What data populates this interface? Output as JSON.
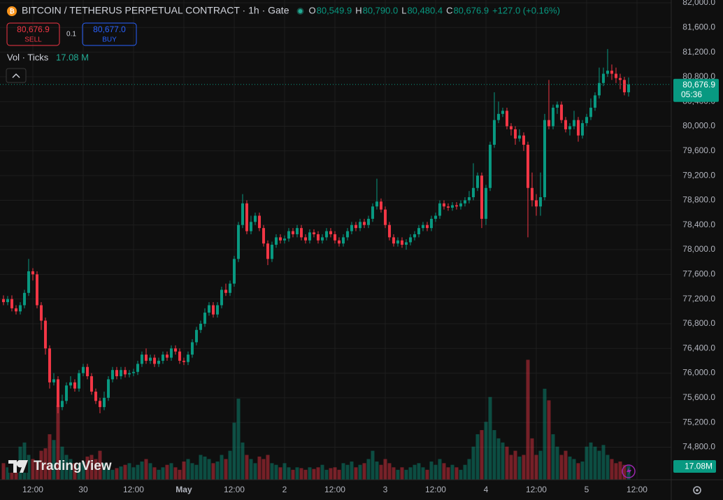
{
  "chart_data": {
    "type": "candlestick",
    "open": [
      77200,
      77150,
      77200,
      77050,
      77000,
      77100,
      77300,
      77650,
      77600,
      77100,
      76850,
      76400,
      75850,
      75900,
      75450,
      75550,
      75800,
      75850,
      75750,
      76000,
      76100,
      75950,
      75700,
      75550,
      75450,
      75600,
      75900,
      76050,
      75950,
      76050,
      75980,
      76000,
      76020,
      76150,
      76300,
      76200,
      76250,
      76150,
      76200,
      76300,
      76250,
      76400,
      76350,
      76200,
      76180,
      76300,
      76500,
      76700,
      76800,
      76980,
      77100,
      76950,
      77100,
      77350,
      77300,
      77450,
      77850,
      78400,
      78750,
      78300,
      78450,
      78550,
      78350,
      78100,
      77850,
      78080,
      78200,
      78150,
      78180,
      78300,
      78250,
      78350,
      78200,
      78150,
      78280,
      78250,
      78150,
      78200,
      78300,
      78250,
      78150,
      78100,
      78200,
      78300,
      78400,
      78350,
      78450,
      78400,
      78500,
      78700,
      78780,
      78650,
      78400,
      78200,
      78100,
      78150,
      78080,
      78120,
      78200,
      78250,
      78350,
      78400,
      78350,
      78500,
      78550,
      78750,
      78700,
      78680,
      78720,
      78700,
      78750,
      78800,
      78850,
      79000,
      79200,
      78500,
      79000,
      79700,
      80100,
      80200,
      80250,
      80000,
      79950,
      79800,
      79850,
      79700,
      79000,
      78800,
      78700,
      78850,
      80100,
      80000,
      80300,
      80350,
      80100,
      79950,
      80000,
      80100,
      79850,
      80050,
      80150,
      80300,
      80500,
      80700,
      80850,
      80900,
      80850,
      80780,
      80750,
      80549.9
    ],
    "high": [
      77260,
      77250,
      77260,
      77100,
      77150,
      77350,
      77850,
      77700,
      77650,
      77150,
      76900,
      76450,
      76000,
      75950,
      75650,
      75850,
      75950,
      75900,
      76050,
      76150,
      76150,
      76000,
      75750,
      75600,
      75700,
      75950,
      76100,
      76100,
      76100,
      76100,
      76050,
      76070,
      76200,
      76350,
      76400,
      76300,
      76300,
      76250,
      76350,
      76350,
      76450,
      76450,
      76400,
      76250,
      76350,
      76550,
      76750,
      76850,
      77050,
      77150,
      77150,
      77150,
      77400,
      77450,
      77500,
      77900,
      78450,
      78900,
      78800,
      78550,
      78600,
      78600,
      78400,
      78150,
      78130,
      78250,
      78250,
      78230,
      78350,
      78350,
      78400,
      78400,
      78250,
      78330,
      78330,
      78300,
      78250,
      78350,
      78350,
      78300,
      78200,
      78250,
      78350,
      78450,
      78450,
      78500,
      78500,
      78550,
      78750,
      79150,
      78830,
      78700,
      78450,
      78250,
      78200,
      78200,
      78170,
      78250,
      78300,
      78400,
      78450,
      78450,
      78550,
      78600,
      78800,
      78800,
      78750,
      78770,
      78770,
      78800,
      78850,
      78950,
      79400,
      79250,
      79250,
      79050,
      79750,
      80550,
      80400,
      80300,
      80300,
      80050,
      80000,
      79950,
      79900,
      79750,
      79250,
      78900,
      79250,
      80200,
      80750,
      80350,
      80400,
      80400,
      80150,
      80050,
      80250,
      80150,
      80100,
      80200,
      80450,
      80550,
      80950,
      80950,
      81250,
      81000,
      80950,
      80850,
      80800,
      80790
    ],
    "low": [
      77100,
      77100,
      77000,
      76950,
      76950,
      77050,
      77250,
      77500,
      77050,
      76700,
      76300,
      75750,
      75800,
      75350,
      75400,
      75500,
      75750,
      75700,
      75700,
      75950,
      75900,
      75650,
      75500,
      75350,
      75400,
      75550,
      75850,
      75900,
      75900,
      75930,
      75930,
      75950,
      75970,
      76100,
      76150,
      76150,
      76100,
      76100,
      76150,
      76200,
      76200,
      76300,
      76150,
      76130,
      76130,
      76250,
      76450,
      76650,
      76750,
      76930,
      76900,
      76900,
      77050,
      77250,
      77250,
      77400,
      77800,
      78350,
      78250,
      78250,
      78400,
      78300,
      78050,
      77750,
      77800,
      78030,
      78100,
      78100,
      78130,
      78200,
      78200,
      78150,
      78100,
      78100,
      78200,
      78100,
      78100,
      78150,
      78200,
      78100,
      78050,
      78050,
      78150,
      78250,
      78300,
      78300,
      78350,
      78350,
      78450,
      78650,
      78600,
      78350,
      78150,
      78050,
      78050,
      78030,
      78000,
      78070,
      78150,
      78200,
      78300,
      78300,
      78300,
      78450,
      78500,
      78650,
      78630,
      78630,
      78650,
      78650,
      78700,
      78750,
      78800,
      78950,
      78350,
      78400,
      78950,
      79650,
      80050,
      80150,
      79950,
      79850,
      79700,
      79750,
      79600,
      78200,
      78700,
      78550,
      78550,
      78800,
      79950,
      79950,
      80200,
      80050,
      79900,
      79850,
      79950,
      79750,
      79800,
      80000,
      80100,
      80250,
      80450,
      80650,
      80800,
      80750,
      80700,
      80600,
      80500,
      80480.4
    ],
    "close": [
      77150,
      77200,
      77050,
      77000,
      77100,
      77300,
      77650,
      77600,
      77100,
      76850,
      76400,
      75850,
      75900,
      75450,
      75550,
      75800,
      75850,
      75750,
      76000,
      76100,
      75950,
      75700,
      75550,
      75450,
      75600,
      75900,
      76050,
      75950,
      76050,
      75980,
      76000,
      76020,
      76150,
      76300,
      76200,
      76250,
      76150,
      76200,
      76300,
      76250,
      76400,
      76350,
      76200,
      76180,
      76300,
      76500,
      76700,
      76800,
      76980,
      77100,
      76950,
      77100,
      77350,
      77300,
      77450,
      77850,
      78400,
      78750,
      78300,
      78450,
      78550,
      78350,
      78100,
      77850,
      78080,
      78200,
      78150,
      78180,
      78300,
      78250,
      78350,
      78200,
      78150,
      78280,
      78250,
      78150,
      78200,
      78300,
      78250,
      78150,
      78100,
      78200,
      78300,
      78400,
      78350,
      78450,
      78400,
      78500,
      78700,
      78780,
      78650,
      78400,
      78200,
      78100,
      78150,
      78080,
      78120,
      78200,
      78250,
      78350,
      78400,
      78350,
      78500,
      78550,
      78750,
      78700,
      78680,
      78720,
      78700,
      78750,
      78800,
      78850,
      79000,
      79200,
      78500,
      79000,
      79700,
      80100,
      80200,
      80250,
      80000,
      79950,
      79800,
      79850,
      79700,
      79000,
      78800,
      78700,
      78850,
      80100,
      80000,
      80300,
      80350,
      80100,
      79950,
      80000,
      80100,
      79850,
      80050,
      80150,
      80300,
      80500,
      80700,
      80850,
      80900,
      80850,
      80780,
      80750,
      80550,
      80676.9
    ],
    "volume": [
      20,
      15,
      12,
      18,
      40,
      45,
      30,
      25,
      22,
      35,
      38,
      55,
      48,
      90,
      40,
      30,
      25,
      20,
      18,
      22,
      28,
      30,
      25,
      35,
      20,
      15,
      12,
      14,
      16,
      18,
      20,
      15,
      18,
      22,
      25,
      20,
      15,
      12,
      15,
      18,
      20,
      15,
      12,
      22,
      25,
      20,
      18,
      30,
      28,
      25,
      20,
      22,
      30,
      25,
      35,
      69,
      98,
      45,
      30,
      25,
      20,
      28,
      25,
      30,
      20,
      18,
      15,
      20,
      15,
      12,
      15,
      14,
      12,
      15,
      13,
      15,
      18,
      12,
      14,
      15,
      12,
      20,
      18,
      22,
      15,
      18,
      20,
      25,
      35,
      22,
      18,
      25,
      20,
      15,
      12,
      15,
      12,
      15,
      18,
      20,
      15,
      12,
      22,
      18,
      25,
      20,
      15,
      18,
      15,
      12,
      18,
      25,
      40,
      55,
      60,
      70,
      100,
      60,
      50,
      45,
      40,
      30,
      35,
      28,
      30,
      145,
      50,
      30,
      35,
      110,
      96,
      55,
      40,
      30,
      35,
      28,
      25,
      20,
      22,
      40,
      45,
      40,
      35,
      42,
      30,
      25,
      20,
      22,
      18,
      17.08
    ],
    "up_color": "#089981",
    "down_color": "#f23645",
    "xlim": [
      -0.83,
      159.17
    ],
    "xticks": [
      {
        "value": 7,
        "label": "12:00"
      },
      {
        "value": 19,
        "label": "30"
      },
      {
        "value": 31,
        "label": "12:00"
      },
      {
        "value": 43,
        "label": "May"
      },
      {
        "value": 55,
        "label": "12:00"
      },
      {
        "value": 67,
        "label": "2"
      },
      {
        "value": 79,
        "label": "12:00"
      },
      {
        "value": 91,
        "label": "3"
      },
      {
        "value": 103,
        "label": "12:00"
      },
      {
        "value": 115,
        "label": "4"
      },
      {
        "value": 127,
        "label": "12:00"
      },
      {
        "value": 139,
        "label": "5"
      },
      {
        "value": 151,
        "label": "12:00"
      }
    ],
    "ylim": [
      74273,
      82045
    ],
    "yticks": [
      {
        "value": 82000,
        "label": "82,000.0"
      },
      {
        "value": 81600,
        "label": "81,600.0"
      },
      {
        "value": 81200,
        "label": "81,200.0"
      },
      {
        "value": 80800,
        "label": "80,800.0"
      },
      {
        "value": 80400,
        "label": "80,400.0"
      },
      {
        "value": 80000,
        "label": "80,000.0"
      },
      {
        "value": 79600,
        "label": "79,600.0"
      },
      {
        "value": 79200,
        "label": "79,200.0"
      },
      {
        "value": 78800,
        "label": "78,800.0"
      },
      {
        "value": 78400,
        "label": "78,400.0"
      },
      {
        "value": 78000,
        "label": "78,000.0"
      },
      {
        "value": 77600,
        "label": "77,600.0"
      },
      {
        "value": 77200,
        "label": "77,200.0"
      },
      {
        "value": 76800,
        "label": "76,800.0"
      },
      {
        "value": 76400,
        "label": "76,400.0"
      },
      {
        "value": 76000,
        "label": "76,000.0"
      },
      {
        "value": 75600,
        "label": "75,600.0"
      },
      {
        "value": 75200,
        "label": "75,200.0"
      },
      {
        "value": 74800,
        "label": "74,800.0"
      }
    ],
    "y2lim": [
      0,
      580
    ],
    "grid": true
  },
  "ui": {
    "symbol": "BITCOIN / TETHERUS PERPETUAL CONTRACT · 1h · Gate",
    "ohlc": [
      {
        "key": "O",
        "label": "80,549.9"
      },
      {
        "key": "H",
        "label": "80,790.0"
      },
      {
        "key": "L",
        "label": "80,480.4"
      },
      {
        "key": "C",
        "label": "80,676.9"
      }
    ],
    "change": "+127.0 (+0.16%)",
    "sell_price": "80,676.9",
    "sell": "SELL",
    "qty": "0.1",
    "buy_price": "80,677.0",
    "buy": "BUY",
    "vol_title": "Vol · Ticks",
    "vol_value": "17.08 M",
    "price_tag": "80,676.9",
    "countdown": "05:36",
    "vol_tag": "17.08M",
    "logo": "TradingView"
  }
}
